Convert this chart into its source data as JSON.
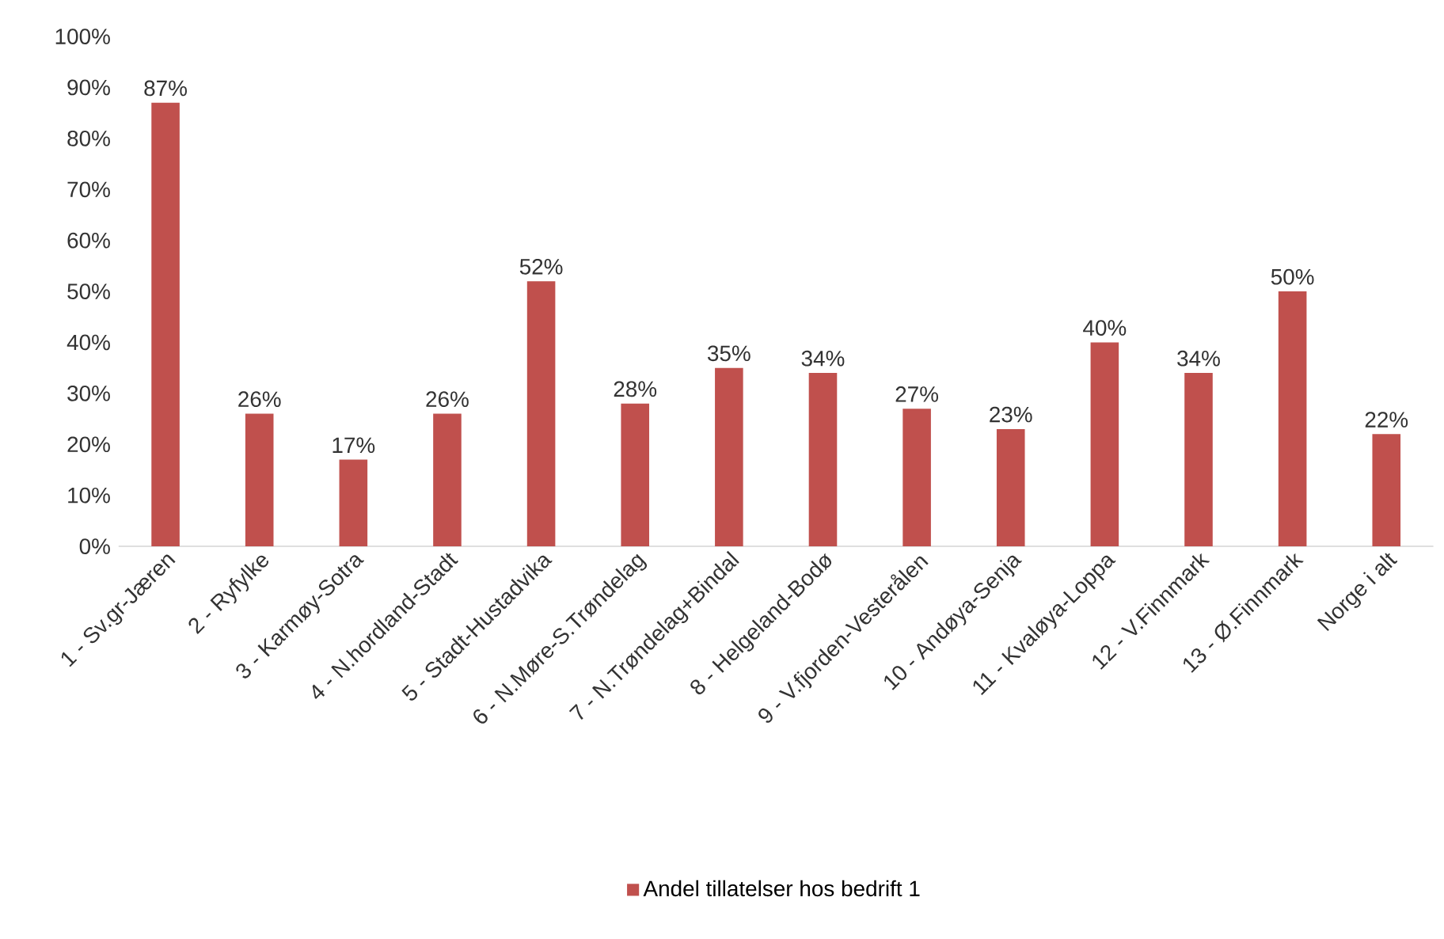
{
  "chart_data": {
    "type": "bar",
    "categories": [
      "1 - Sv.gr-Jæren",
      "2 - Ryfylke",
      "3 - Karmøy-Sotra",
      "4 - N.hordland-Stadt",
      "5 - Stadt-Hustadvika",
      "6 - N.Møre-S.Trøndelag",
      "7 - N.Trøndelag+Bindal",
      "8 - Helgeland-Bodø",
      "9 - V.fjorden-Vesterålen",
      "10 - Andøya-Senja",
      "11 - Kvaløya-Loppa",
      "12 - V.Finnmark",
      "13 - Ø.Finnmark",
      "Norge i alt"
    ],
    "series": [
      {
        "name": "Andel tillatelser hos bedrift 1",
        "color": "#c0504d",
        "values": [
          87,
          26,
          17,
          26,
          52,
          28,
          35,
          34,
          27,
          23,
          40,
          34,
          50,
          22
        ],
        "value_labels": [
          "87%",
          "26%",
          "17%",
          "26%",
          "52%",
          "28%",
          "35%",
          "34%",
          "27%",
          "23%",
          "40%",
          "34%",
          "50%",
          "22%"
        ]
      }
    ],
    "ylim": [
      0,
      100
    ],
    "yticks": [
      {
        "value": 0,
        "label": "0%"
      },
      {
        "value": 10,
        "label": "10%"
      },
      {
        "value": 20,
        "label": "20%"
      },
      {
        "value": 30,
        "label": "30%"
      },
      {
        "value": 40,
        "label": "40%"
      },
      {
        "value": 50,
        "label": "50%"
      },
      {
        "value": 60,
        "label": "60%"
      },
      {
        "value": 70,
        "label": "70%"
      },
      {
        "value": 80,
        "label": "80%"
      },
      {
        "value": 90,
        "label": "90%"
      },
      {
        "value": 100,
        "label": "100%"
      }
    ],
    "legend": "bottom"
  }
}
